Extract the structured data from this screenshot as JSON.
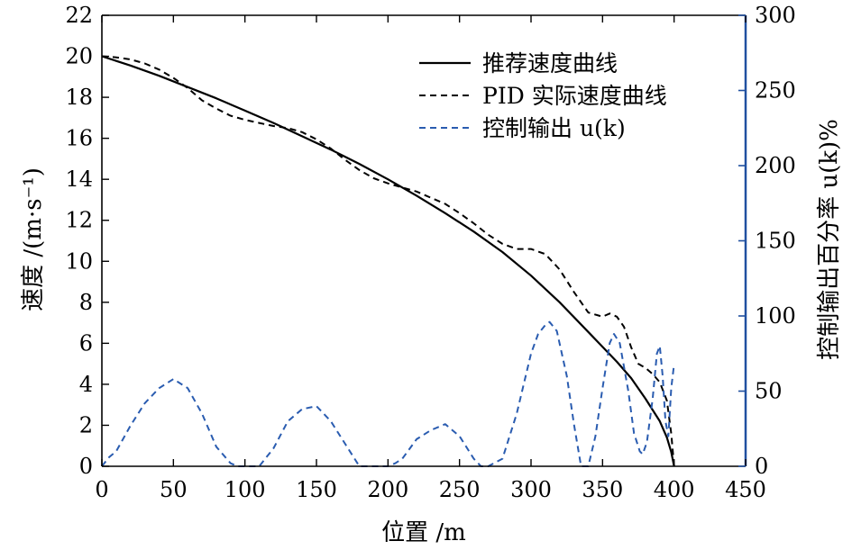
{
  "chart_data": {
    "type": "line",
    "xlabel": "位置 /m",
    "ylabel_left": "速度 /(m·s⁻¹)",
    "ylabel_right": "控制输出百分率 u(k)%",
    "xlim": [
      0,
      450
    ],
    "ylim_left": [
      0,
      22
    ],
    "ylim_right": [
      0,
      300
    ],
    "x_ticks": [
      "0",
      "50",
      "100",
      "150",
      "200",
      "250",
      "300",
      "350",
      "400",
      "450"
    ],
    "y_ticks_left": [
      "0",
      "2",
      "4",
      "6",
      "8",
      "10",
      "12",
      "14",
      "16",
      "18",
      "20",
      "22"
    ],
    "y_ticks_right": [
      "0",
      "50",
      "100",
      "150",
      "200",
      "250",
      "300"
    ],
    "grid": false,
    "legend_position": "top-right",
    "colors": {
      "axis_left": "#000000",
      "axis_right": "#2050a0",
      "control": "#2a5cb0"
    },
    "series": [
      {
        "name": "推荐速度曲线",
        "axis": "left",
        "style": "solid",
        "color": "#000000",
        "x": [
          0,
          20,
          40,
          60,
          80,
          100,
          120,
          140,
          160,
          180,
          200,
          220,
          240,
          260,
          280,
          300,
          320,
          340,
          360,
          370,
          380,
          390,
          395,
          398,
          400
        ],
        "y": [
          20.0,
          19.55,
          19.05,
          18.5,
          17.95,
          17.35,
          16.75,
          16.1,
          15.45,
          14.75,
          14.0,
          13.2,
          12.35,
          11.45,
          10.45,
          9.3,
          8.0,
          6.55,
          5.1,
          4.3,
          3.3,
          2.2,
          1.4,
          0.7,
          0.0
        ]
      },
      {
        "name": "PID 实际速度曲线",
        "axis": "left",
        "style": "dashed",
        "color": "#000000",
        "x": [
          0,
          10,
          20,
          30,
          40,
          50,
          60,
          70,
          80,
          90,
          100,
          110,
          120,
          130,
          140,
          150,
          160,
          170,
          180,
          190,
          200,
          210,
          220,
          230,
          240,
          250,
          260,
          270,
          280,
          290,
          300,
          310,
          320,
          330,
          340,
          350,
          355,
          360,
          365,
          370,
          375,
          380,
          385,
          390,
          395,
          398,
          400
        ],
        "y": [
          20.0,
          19.95,
          19.85,
          19.65,
          19.35,
          18.95,
          18.45,
          17.85,
          17.45,
          17.1,
          16.9,
          16.75,
          16.6,
          16.5,
          16.3,
          15.95,
          15.5,
          14.95,
          14.45,
          14.05,
          13.8,
          13.6,
          13.4,
          13.1,
          12.8,
          12.35,
          11.85,
          11.3,
          10.85,
          10.6,
          10.6,
          10.35,
          9.6,
          8.5,
          7.5,
          7.3,
          7.45,
          7.3,
          6.8,
          5.8,
          5.0,
          4.8,
          4.5,
          4.1,
          3.2,
          1.6,
          0.0
        ]
      },
      {
        "name": "控制输出 u(k)",
        "axis": "right",
        "style": "dashed",
        "color": "#2a5cb0",
        "x": [
          0,
          5,
          10,
          20,
          30,
          40,
          50,
          60,
          70,
          80,
          90,
          95,
          100,
          110,
          120,
          130,
          140,
          150,
          160,
          170,
          180,
          190,
          200,
          205,
          210,
          220,
          230,
          240,
          250,
          260,
          265,
          270,
          280,
          290,
          300,
          305,
          310,
          313,
          318,
          325,
          330,
          335,
          340,
          345,
          350,
          355,
          358,
          362,
          368,
          372,
          376,
          378,
          381,
          385,
          388,
          390,
          392,
          394,
          396,
          398,
          400
        ],
        "y": [
          0,
          6,
          10,
          27,
          42,
          52,
          58,
          52,
          35,
          13,
          2,
          0,
          0,
          0,
          12,
          30,
          38,
          40,
          30,
          15,
          0,
          0,
          0,
          2,
          5,
          18,
          24,
          28,
          20,
          5,
          0,
          0,
          5,
          35,
          75,
          88,
          94,
          96,
          90,
          60,
          28,
          0,
          0,
          20,
          52,
          82,
          88,
          82,
          50,
          22,
          10,
          8,
          16,
          45,
          75,
          80,
          60,
          30,
          20,
          52,
          68
        ]
      }
    ]
  }
}
